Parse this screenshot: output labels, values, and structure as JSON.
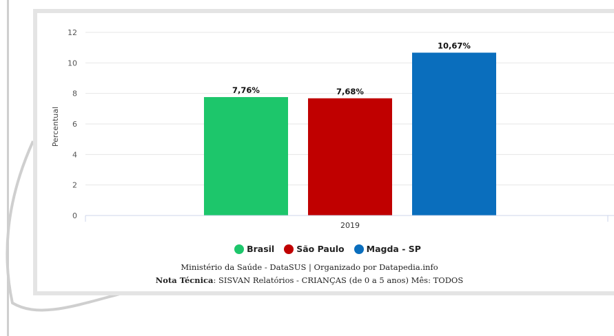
{
  "chart_data": {
    "type": "bar",
    "categories": [
      "2019"
    ],
    "series": [
      {
        "name": "Brasil",
        "values": [
          7.76
        ],
        "label": "7,76%",
        "color": "#1dc66b"
      },
      {
        "name": "São Paulo",
        "values": [
          7.68
        ],
        "label": "7,68%",
        "color": "#c00000"
      },
      {
        "name": "Magda - SP",
        "values": [
          10.67
        ],
        "label": "10,67%",
        "color": "#0a6ebd"
      }
    ],
    "ylabel": "Percentual",
    "xlabel": "",
    "ylim": [
      0,
      12
    ],
    "yticks": [
      "0",
      "2",
      "4",
      "6",
      "8",
      "10",
      "12"
    ],
    "grid": true,
    "legend_position": "bottom"
  },
  "footer": {
    "source_line": "Ministério da Saúde - DataSUS | Organizado por Datapedia.info",
    "note_label": "Nota Técnica",
    "note_text": ": SISVAN Relatórios - CRIANÇAS (de 0 a 5 anos) Mês: TODOS"
  }
}
